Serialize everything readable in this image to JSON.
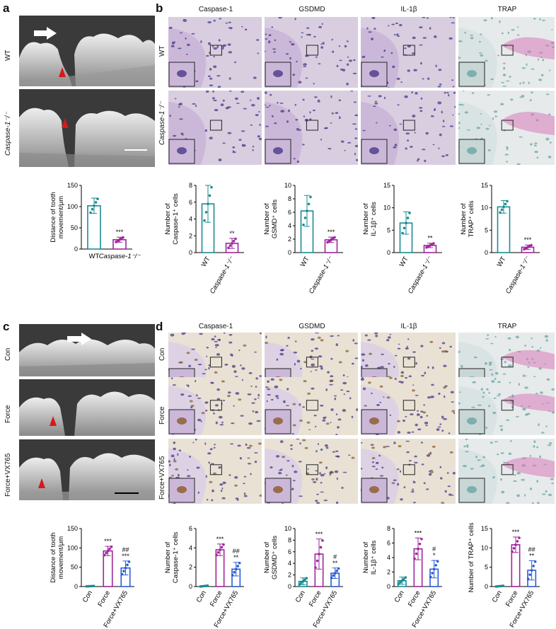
{
  "panels": {
    "a": {
      "letter": "a",
      "labels": [
        "WT",
        "Caspase-1⁻/⁻"
      ]
    },
    "b": {
      "letter": "b",
      "columns": [
        "Caspase-1",
        "GSDMD",
        "IL-1β",
        "TRAP"
      ],
      "rows": [
        "WT",
        "Caspase-1⁻/⁻"
      ]
    },
    "c": {
      "letter": "c",
      "labels": [
        "Con",
        "Force",
        "Force+VX765"
      ]
    },
    "d": {
      "letter": "d",
      "columns": [
        "Caspase-1",
        "GSDMD",
        "IL-1β",
        "TRAP"
      ],
      "rows": [
        "Con",
        "Force",
        "Force+VX765"
      ]
    }
  },
  "colors": {
    "teal": "#1a8c93",
    "purple": "#a0259e",
    "blue": "#2a5bd7",
    "he_bg": "#d9cde0",
    "trap_bg": "#e7eaea",
    "dab_bg": "#e9e1d4",
    "arrowhead": "#d61a1a"
  },
  "chart_data": [
    {
      "type": "bar",
      "id": "a_chart",
      "categories": [
        "WT",
        "Caspase-1⁻/⁻"
      ],
      "values": [
        102,
        22
      ],
      "errors": [
        18,
        6
      ],
      "sig": [
        "",
        "***"
      ],
      "ylabel": "Distance of tooth movement/μm",
      "ylim": [
        0,
        150
      ],
      "yticks": [
        0,
        50,
        100,
        150
      ],
      "colors": [
        "#1a8c93",
        "#a0259e"
      ]
    },
    {
      "type": "bar",
      "id": "b1_chart",
      "categories": [
        "WT",
        "Caspase-1⁻/⁻"
      ],
      "values": [
        5.8,
        1.1
      ],
      "errors": [
        2.2,
        0.6
      ],
      "sig": [
        "",
        "**"
      ],
      "ylabel": "Number of Caspase-1⁺ cells",
      "ylim": [
        0,
        8
      ],
      "yticks": [
        0,
        2,
        4,
        6,
        8
      ],
      "colors": [
        "#1a8c93",
        "#a0259e"
      ]
    },
    {
      "type": "bar",
      "id": "b2_chart",
      "categories": [
        "WT",
        "Caspase-1⁻/⁻"
      ],
      "values": [
        6.2,
        1.9
      ],
      "errors": [
        2.3,
        0.4
      ],
      "sig": [
        "",
        "***"
      ],
      "ylabel": "Number of GSMD⁺ cells",
      "ylim": [
        0,
        10
      ],
      "yticks": [
        0,
        2,
        4,
        6,
        8,
        10
      ],
      "colors": [
        "#1a8c93",
        "#a0259e"
      ]
    },
    {
      "type": "bar",
      "id": "b3_chart",
      "categories": [
        "WT",
        "Caspase-1⁻/⁻"
      ],
      "values": [
        6.6,
        1.6
      ],
      "errors": [
        2.5,
        0.5
      ],
      "sig": [
        "",
        "**"
      ],
      "ylabel": "Number of IL-1β⁺ cells",
      "ylim": [
        0,
        15
      ],
      "yticks": [
        0,
        5,
        10,
        15
      ],
      "colors": [
        "#1a8c93",
        "#a0259e"
      ]
    },
    {
      "type": "bar",
      "id": "b4_chart",
      "categories": [
        "WT",
        "Caspase-1⁻/⁻"
      ],
      "values": [
        10.2,
        1.2
      ],
      "errors": [
        1.4,
        0.5
      ],
      "sig": [
        "",
        "***"
      ],
      "ylabel": "Number of TRAP⁺ cells",
      "ylim": [
        0,
        15
      ],
      "yticks": [
        0,
        5,
        10,
        15
      ],
      "colors": [
        "#1a8c93",
        "#a0259e"
      ]
    },
    {
      "type": "bar",
      "id": "c_chart",
      "categories": [
        "Con",
        "Force",
        "Force+VX765"
      ],
      "values": [
        1,
        92,
        48
      ],
      "errors": [
        0.5,
        12,
        18
      ],
      "sig": [
        "",
        "***",
        "##\n***"
      ],
      "ylabel": "Distance of tooth movement/μm",
      "ylim": [
        0,
        150
      ],
      "yticks": [
        0,
        50,
        100,
        150
      ],
      "colors": [
        "#1a8c93",
        "#a0259e",
        "#2a5bd7"
      ]
    },
    {
      "type": "bar",
      "id": "d1_chart",
      "categories": [
        "Con",
        "Force",
        "Force+VX765"
      ],
      "values": [
        0.05,
        3.8,
        1.8
      ],
      "errors": [
        0.05,
        0.6,
        0.7
      ],
      "sig": [
        "",
        "***",
        "##\n**"
      ],
      "ylabel": "Number of Caspase-1⁺ cells",
      "ylim": [
        0,
        6
      ],
      "yticks": [
        0,
        2,
        4,
        6
      ],
      "colors": [
        "#1a8c93",
        "#a0259e",
        "#2a5bd7"
      ]
    },
    {
      "type": "bar",
      "id": "d2_chart",
      "categories": [
        "Con",
        "Force",
        "Force+VX765"
      ],
      "values": [
        0.9,
        5.6,
        2.3
      ],
      "errors": [
        0.6,
        2.6,
        0.9
      ],
      "sig": [
        "",
        "***",
        "#\n**"
      ],
      "ylabel": "Number of GSDMD⁺ cells",
      "ylim": [
        0,
        10
      ],
      "yticks": [
        0,
        2,
        4,
        6,
        8,
        10
      ],
      "colors": [
        "#1a8c93",
        "#a0259e",
        "#2a5bd7"
      ]
    },
    {
      "type": "bar",
      "id": "d3_chart",
      "categories": [
        "Con",
        "Force",
        "Force+VX765"
      ],
      "values": [
        0.8,
        5.2,
        2.4
      ],
      "errors": [
        0.5,
        1.5,
        1.2
      ],
      "sig": [
        "",
        "***",
        "#\n*"
      ],
      "ylabel": "Number of IL-1β⁺ cells",
      "ylim": [
        0,
        8
      ],
      "yticks": [
        0,
        2,
        4,
        6,
        8
      ],
      "colors": [
        "#1a8c93",
        "#a0259e",
        "#2a5bd7"
      ]
    },
    {
      "type": "bar",
      "id": "d4_chart",
      "categories": [
        "Con",
        "Force",
        "Force+VX765"
      ],
      "values": [
        0.1,
        10.8,
        4.2
      ],
      "errors": [
        0.1,
        2.0,
        2.5
      ],
      "sig": [
        "",
        "***",
        "##\n**"
      ],
      "ylabel": "Number of TRAP⁺ cells",
      "ylim": [
        0,
        15
      ],
      "yticks": [
        0,
        5,
        10,
        15
      ],
      "colors": [
        "#1a8c93",
        "#a0259e",
        "#2a5bd7"
      ]
    }
  ]
}
